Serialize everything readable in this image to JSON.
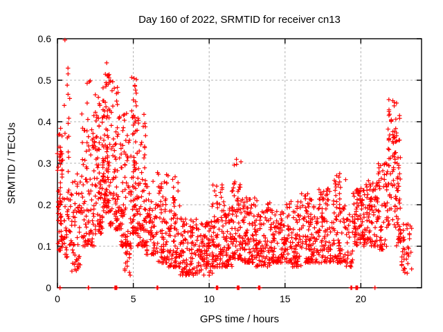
{
  "title": "Day 160 of 2022, SRMTID for receiver cn13",
  "chart_data": {
    "type": "scatter",
    "title": "Day 160 of 2022, SRMTID for receiver cn13",
    "xlabel": "GPS time / hours",
    "ylabel": "SRMTID / TECUs",
    "xlim": [
      0,
      24
    ],
    "ylim": [
      0,
      0.6
    ],
    "x_ticks": [
      0,
      5,
      10,
      15,
      20
    ],
    "x_tick_labels": [
      "0",
      "5",
      "10",
      "15",
      "20"
    ],
    "y_ticks": [
      0,
      0.1,
      0.2,
      0.3,
      0.4,
      0.5,
      0.6
    ],
    "y_tick_labels": [
      "0",
      "0.1",
      "0.2",
      "0.3",
      "0.4",
      "0.5",
      "0.6"
    ],
    "grid": true,
    "legend": "none",
    "marker": "plus",
    "marker_color": "#ff0000",
    "grid_color": "#b0b0b0",
    "border_color": "#000000",
    "background": "#ffffff",
    "point_distribution": {
      "note": "Scatter is too dense to digitize point-by-point. bins = [startHour, endHour, count, yMin, yMax, lowBiasPower] describing the observed density envelope of SRMTID values (TECUs) vs GPS hour. zero_line_clusters = [startHour, endHour, count] of points plotted exactly at y=0 on the axis.",
      "seed": 7,
      "time_quantum_hours": 0.05,
      "bins": [
        [
          0.0,
          0.35,
          60,
          0.09,
          0.33,
          1.2
        ],
        [
          0.05,
          0.3,
          6,
          0.3,
          0.4,
          1.0
        ],
        [
          0.35,
          0.65,
          25,
          0.07,
          0.22,
          1.5
        ],
        [
          0.45,
          0.8,
          14,
          0.3,
          0.6,
          0.9
        ],
        [
          0.6,
          0.95,
          18,
          0.1,
          0.28,
          1.4
        ],
        [
          0.95,
          1.6,
          55,
          0.04,
          0.28,
          1.7
        ],
        [
          1.6,
          2.45,
          95,
          0.1,
          0.5,
          1.9
        ],
        [
          2.45,
          3.0,
          80,
          0.13,
          0.47,
          1.7
        ],
        [
          3.0,
          3.45,
          95,
          0.18,
          0.55,
          1.4
        ],
        [
          3.45,
          4.2,
          90,
          0.14,
          0.5,
          1.7
        ],
        [
          4.2,
          4.9,
          75,
          0.1,
          0.43,
          1.9
        ],
        [
          4.4,
          4.9,
          15,
          0.03,
          0.12,
          1.0
        ],
        [
          4.9,
          5.3,
          75,
          0.13,
          0.52,
          1.7
        ],
        [
          5.3,
          5.85,
          65,
          0.1,
          0.42,
          1.9
        ],
        [
          5.85,
          6.6,
          65,
          0.08,
          0.26,
          1.6
        ],
        [
          6.6,
          7.3,
          70,
          0.06,
          0.3,
          1.9
        ],
        [
          7.3,
          8.1,
          75,
          0.05,
          0.27,
          2.0
        ],
        [
          8.1,
          9.2,
          95,
          0.03,
          0.17,
          1.4
        ],
        [
          9.2,
          10.2,
          90,
          0.03,
          0.16,
          1.3
        ],
        [
          10.2,
          11.0,
          85,
          0.05,
          0.26,
          1.8
        ],
        [
          11.0,
          11.5,
          55,
          0.05,
          0.2,
          1.5
        ],
        [
          11.5,
          12.1,
          75,
          0.07,
          0.31,
          1.7
        ],
        [
          12.1,
          13.1,
          95,
          0.06,
          0.22,
          1.5
        ],
        [
          13.1,
          14.1,
          95,
          0.05,
          0.21,
          1.5
        ],
        [
          14.1,
          15.1,
          90,
          0.06,
          0.19,
          1.4
        ],
        [
          15.1,
          16.1,
          90,
          0.05,
          0.21,
          1.4
        ],
        [
          16.1,
          17.1,
          90,
          0.06,
          0.23,
          1.5
        ],
        [
          17.1,
          18.1,
          90,
          0.06,
          0.24,
          1.5
        ],
        [
          18.1,
          19.0,
          85,
          0.06,
          0.28,
          1.6
        ],
        [
          19.0,
          19.45,
          28,
          0.05,
          0.18,
          1.4
        ],
        [
          19.45,
          20.3,
          90,
          0.1,
          0.24,
          1.1
        ],
        [
          20.3,
          21.1,
          75,
          0.1,
          0.26,
          1.3
        ],
        [
          21.1,
          21.75,
          55,
          0.09,
          0.31,
          1.3
        ],
        [
          21.75,
          22.35,
          70,
          0.15,
          0.455,
          1.1
        ],
        [
          22.3,
          22.6,
          45,
          0.1,
          0.42,
          1.3
        ],
        [
          22.6,
          23.35,
          40,
          0.03,
          0.17,
          1.3
        ]
      ],
      "zero_line_clusters": [
        [
          0.08,
          0.2,
          2
        ],
        [
          1.96,
          2.1,
          2
        ],
        [
          3.78,
          3.93,
          10
        ],
        [
          6.54,
          6.68,
          2
        ],
        [
          10.45,
          10.58,
          8
        ],
        [
          11.85,
          11.98,
          8
        ],
        [
          13.22,
          13.35,
          8
        ],
        [
          19.33,
          19.45,
          8
        ],
        [
          19.66,
          19.8,
          8
        ],
        [
          20.92,
          21.04,
          2
        ]
      ]
    }
  }
}
